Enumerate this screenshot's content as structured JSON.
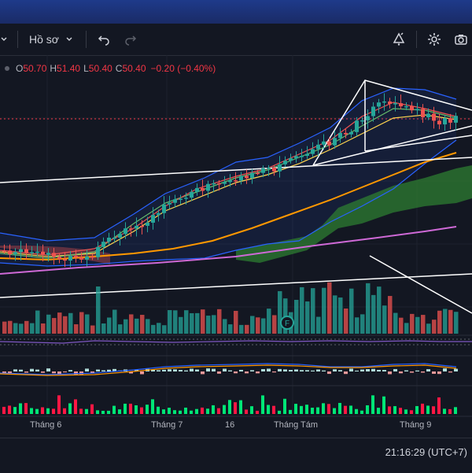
{
  "toolbar": {
    "profile_label": "Hồ sơ",
    "undo_icon": "undo-icon",
    "redo_icon": "redo-icon",
    "alert_icon": "alert-icon",
    "settings_icon": "gear-icon",
    "camera_icon": "camera-icon"
  },
  "legend": {
    "open_key": "O",
    "open_val": "50.70",
    "high_key": "H",
    "high_val": "51.40",
    "low_key": "L",
    "low_val": "50.40",
    "close_key": "C",
    "close_val": "50.40",
    "change": "−0.20 (−0.40%)"
  },
  "event_marker": "F",
  "time_axis": {
    "labels": [
      "Tháng 6",
      "Tháng 7",
      "16",
      "Tháng Tám",
      "Tháng 9"
    ]
  },
  "clock": "21:16:29 (UTC+7)",
  "colors": {
    "up": "#26a69a",
    "down": "#ef5350",
    "background": "#131722",
    "accent": "#2962ff"
  }
}
